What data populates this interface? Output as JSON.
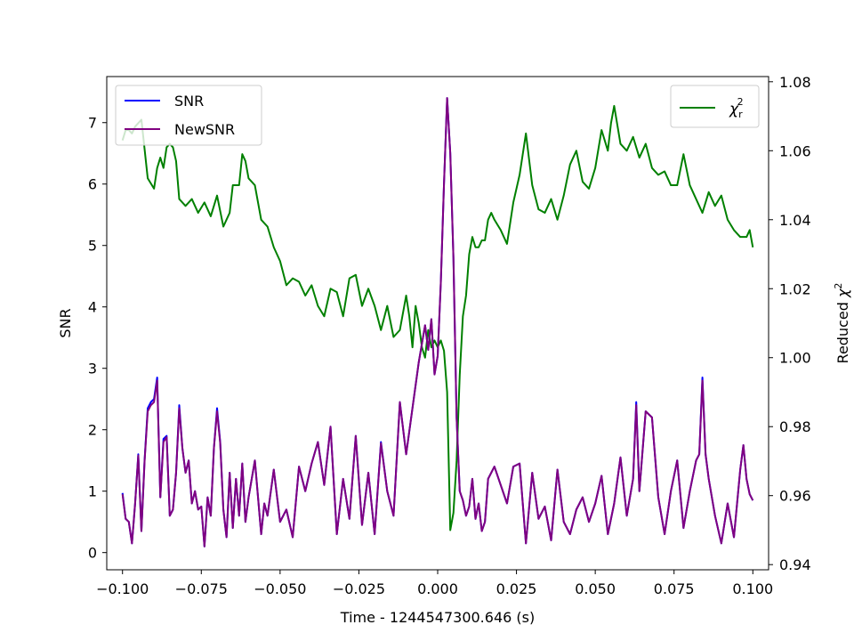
{
  "chart_data": {
    "type": "line",
    "xlabel": "Time - 1244547300.646 (s)",
    "ylabel_left": "SNR",
    "ylabel_right_prefix": "Reduced ",
    "ylabel_right_symbol": "χ",
    "ylabel_right_sup": "2",
    "xlim": [
      -0.105,
      0.105
    ],
    "ylim_left": [
      -0.28,
      7.75
    ],
    "ylim_right": [
      0.9385,
      1.0815
    ],
    "x_ticks": [
      -0.1,
      -0.075,
      -0.05,
      -0.025,
      0.0,
      0.025,
      0.05,
      0.075,
      0.1
    ],
    "x_tick_labels": [
      "−0.100",
      "−0.075",
      "−0.050",
      "−0.025",
      "0.000",
      "0.025",
      "0.050",
      "0.075",
      "0.100"
    ],
    "y_left_ticks": [
      0,
      1,
      2,
      3,
      4,
      5,
      6,
      7
    ],
    "y_left_tick_labels": [
      "0",
      "1",
      "2",
      "3",
      "4",
      "5",
      "6",
      "7"
    ],
    "y_right_ticks": [
      0.94,
      0.96,
      0.98,
      1.0,
      1.02,
      1.04,
      1.06,
      1.08
    ],
    "y_right_tick_labels": [
      "0.94",
      "0.96",
      "0.98",
      "1.00",
      "1.02",
      "1.04",
      "1.06",
      "1.08"
    ],
    "grid": false,
    "legend_left": {
      "placement": "upper-left",
      "entries": [
        {
          "label": "SNR",
          "color": "#0000ff"
        },
        {
          "label": "NewSNR",
          "color": "#800080"
        }
      ]
    },
    "legend_right": {
      "placement": "upper-right",
      "symbol": "χ",
      "subscript": "r",
      "superscript": "2",
      "color": "#008000"
    },
    "series": [
      {
        "name": "SNR",
        "axis": "left",
        "color": "#0000ff",
        "x": [
          -0.1,
          -0.099,
          -0.098,
          -0.097,
          -0.096,
          -0.095,
          -0.094,
          -0.093,
          -0.092,
          -0.091,
          -0.09,
          -0.089,
          -0.088,
          -0.087,
          -0.086,
          -0.085,
          -0.084,
          -0.083,
          -0.082,
          -0.081,
          -0.08,
          -0.079,
          -0.078,
          -0.077,
          -0.076,
          -0.075,
          -0.074,
          -0.073,
          -0.072,
          -0.071,
          -0.07,
          -0.069,
          -0.068,
          -0.067,
          -0.066,
          -0.065,
          -0.064,
          -0.063,
          -0.062,
          -0.061,
          -0.06,
          -0.058,
          -0.056,
          -0.055,
          -0.054,
          -0.052,
          -0.05,
          -0.048,
          -0.046,
          -0.044,
          -0.042,
          -0.04,
          -0.038,
          -0.036,
          -0.034,
          -0.032,
          -0.03,
          -0.028,
          -0.026,
          -0.024,
          -0.022,
          -0.02,
          -0.018,
          -0.016,
          -0.014,
          -0.012,
          -0.01,
          -0.008,
          -0.006,
          -0.004,
          -0.003,
          -0.002,
          -0.001,
          0.0,
          0.001,
          0.002,
          0.003,
          0.004,
          0.005,
          0.006,
          0.007,
          0.008,
          0.009,
          0.01,
          0.011,
          0.012,
          0.013,
          0.014,
          0.015,
          0.016,
          0.018,
          0.02,
          0.022,
          0.024,
          0.026,
          0.028,
          0.03,
          0.032,
          0.034,
          0.036,
          0.038,
          0.04,
          0.042,
          0.044,
          0.046,
          0.048,
          0.05,
          0.052,
          0.054,
          0.056,
          0.058,
          0.06,
          0.062,
          0.063,
          0.064,
          0.066,
          0.068,
          0.07,
          0.072,
          0.074,
          0.076,
          0.078,
          0.08,
          0.082,
          0.083,
          0.084,
          0.085,
          0.086,
          0.088,
          0.09,
          0.092,
          0.094,
          0.096,
          0.097,
          0.098,
          0.099,
          0.1
        ],
        "y": [
          0.97,
          0.55,
          0.5,
          0.15,
          0.8,
          1.6,
          0.35,
          1.5,
          2.35,
          2.45,
          2.5,
          2.85,
          0.9,
          1.85,
          1.9,
          0.6,
          0.7,
          1.3,
          2.4,
          1.7,
          1.3,
          1.5,
          0.8,
          1.0,
          0.7,
          0.75,
          0.1,
          0.9,
          0.6,
          1.7,
          2.35,
          1.8,
          0.7,
          0.25,
          1.3,
          0.4,
          1.2,
          0.6,
          1.45,
          0.5,
          0.9,
          1.5,
          0.3,
          0.8,
          0.6,
          1.35,
          0.5,
          0.7,
          0.25,
          1.4,
          1.0,
          1.45,
          1.8,
          1.1,
          2.05,
          0.3,
          1.2,
          0.55,
          1.9,
          0.45,
          1.3,
          0.3,
          1.8,
          1.0,
          0.6,
          2.45,
          1.6,
          2.35,
          3.1,
          3.7,
          3.3,
          3.8,
          2.9,
          3.2,
          4.4,
          6.0,
          7.4,
          6.5,
          4.8,
          2.2,
          1.0,
          0.85,
          0.6,
          0.75,
          1.2,
          0.55,
          0.8,
          0.35,
          0.5,
          1.2,
          1.4,
          1.1,
          0.8,
          1.4,
          1.45,
          0.15,
          1.3,
          0.55,
          0.75,
          0.2,
          1.35,
          0.5,
          0.3,
          0.7,
          0.9,
          0.5,
          0.8,
          1.25,
          0.3,
          0.8,
          1.55,
          0.6,
          1.2,
          2.45,
          1.0,
          2.3,
          2.2,
          0.9,
          0.3,
          1.0,
          1.5,
          0.4,
          1.0,
          1.5,
          1.6,
          2.85,
          1.6,
          1.2,
          0.6,
          0.15,
          0.8,
          0.25,
          1.35,
          1.75,
          1.2,
          0.95,
          0.85
        ]
      },
      {
        "name": "NewSNR",
        "axis": "left",
        "color": "#800080",
        "x": [
          -0.1,
          -0.099,
          -0.098,
          -0.097,
          -0.096,
          -0.095,
          -0.094,
          -0.093,
          -0.092,
          -0.091,
          -0.09,
          -0.089,
          -0.088,
          -0.087,
          -0.086,
          -0.085,
          -0.084,
          -0.083,
          -0.082,
          -0.081,
          -0.08,
          -0.079,
          -0.078,
          -0.077,
          -0.076,
          -0.075,
          -0.074,
          -0.073,
          -0.072,
          -0.071,
          -0.07,
          -0.069,
          -0.068,
          -0.067,
          -0.066,
          -0.065,
          -0.064,
          -0.063,
          -0.062,
          -0.061,
          -0.06,
          -0.058,
          -0.056,
          -0.055,
          -0.054,
          -0.052,
          -0.05,
          -0.048,
          -0.046,
          -0.044,
          -0.042,
          -0.04,
          -0.038,
          -0.036,
          -0.034,
          -0.032,
          -0.03,
          -0.028,
          -0.026,
          -0.024,
          -0.022,
          -0.02,
          -0.018,
          -0.016,
          -0.014,
          -0.012,
          -0.01,
          -0.008,
          -0.006,
          -0.004,
          -0.003,
          -0.002,
          -0.001,
          0.0,
          0.001,
          0.002,
          0.003,
          0.004,
          0.005,
          0.006,
          0.007,
          0.008,
          0.009,
          0.01,
          0.011,
          0.012,
          0.013,
          0.014,
          0.015,
          0.016,
          0.018,
          0.02,
          0.022,
          0.024,
          0.026,
          0.028,
          0.03,
          0.032,
          0.034,
          0.036,
          0.038,
          0.04,
          0.042,
          0.044,
          0.046,
          0.048,
          0.05,
          0.052,
          0.054,
          0.056,
          0.058,
          0.06,
          0.062,
          0.063,
          0.064,
          0.066,
          0.068,
          0.07,
          0.072,
          0.074,
          0.076,
          0.078,
          0.08,
          0.082,
          0.083,
          0.084,
          0.085,
          0.086,
          0.088,
          0.09,
          0.092,
          0.094,
          0.096,
          0.097,
          0.098,
          0.099,
          0.1
        ],
        "y": [
          0.95,
          0.55,
          0.5,
          0.15,
          0.8,
          1.58,
          0.35,
          1.48,
          2.3,
          2.4,
          2.45,
          2.8,
          0.9,
          1.8,
          1.88,
          0.6,
          0.7,
          1.3,
          2.35,
          1.7,
          1.3,
          1.5,
          0.8,
          1.0,
          0.7,
          0.75,
          0.1,
          0.9,
          0.6,
          1.7,
          2.3,
          1.78,
          0.7,
          0.25,
          1.3,
          0.4,
          1.2,
          0.6,
          1.45,
          0.5,
          0.9,
          1.5,
          0.3,
          0.8,
          0.6,
          1.35,
          0.5,
          0.7,
          0.25,
          1.4,
          1.0,
          1.45,
          1.8,
          1.1,
          2.05,
          0.3,
          1.2,
          0.55,
          1.9,
          0.45,
          1.3,
          0.3,
          1.78,
          1.0,
          0.6,
          2.45,
          1.6,
          2.35,
          3.1,
          3.7,
          3.3,
          3.8,
          2.9,
          3.2,
          4.4,
          6.0,
          7.4,
          6.5,
          4.8,
          2.2,
          1.0,
          0.85,
          0.6,
          0.75,
          1.2,
          0.55,
          0.8,
          0.35,
          0.5,
          1.2,
          1.4,
          1.1,
          0.8,
          1.4,
          1.45,
          0.15,
          1.3,
          0.55,
          0.75,
          0.2,
          1.35,
          0.5,
          0.3,
          0.7,
          0.9,
          0.5,
          0.8,
          1.25,
          0.3,
          0.8,
          1.55,
          0.6,
          1.2,
          2.4,
          1.0,
          2.3,
          2.2,
          0.9,
          0.3,
          1.0,
          1.5,
          0.4,
          1.0,
          1.5,
          1.6,
          2.8,
          1.6,
          1.2,
          0.6,
          0.15,
          0.8,
          0.25,
          1.35,
          1.75,
          1.2,
          0.95,
          0.85
        ]
      },
      {
        "name": "χ_r^2",
        "axis": "right",
        "color": "#008000",
        "x": [
          -0.1,
          -0.099,
          -0.098,
          -0.097,
          -0.096,
          -0.095,
          -0.094,
          -0.092,
          -0.09,
          -0.089,
          -0.088,
          -0.087,
          -0.086,
          -0.085,
          -0.084,
          -0.083,
          -0.082,
          -0.08,
          -0.078,
          -0.076,
          -0.074,
          -0.072,
          -0.07,
          -0.068,
          -0.066,
          -0.065,
          -0.064,
          -0.063,
          -0.062,
          -0.061,
          -0.06,
          -0.059,
          -0.058,
          -0.056,
          -0.054,
          -0.052,
          -0.05,
          -0.048,
          -0.046,
          -0.044,
          -0.042,
          -0.04,
          -0.038,
          -0.036,
          -0.034,
          -0.032,
          -0.03,
          -0.028,
          -0.026,
          -0.024,
          -0.022,
          -0.02,
          -0.018,
          -0.016,
          -0.014,
          -0.012,
          -0.01,
          -0.009,
          -0.008,
          -0.007,
          -0.006,
          -0.005,
          -0.004,
          -0.003,
          -0.002,
          -0.001,
          0.0,
          0.001,
          0.002,
          0.003,
          0.004,
          0.005,
          0.006,
          0.007,
          0.008,
          0.009,
          0.01,
          0.011,
          0.012,
          0.013,
          0.014,
          0.015,
          0.016,
          0.017,
          0.018,
          0.02,
          0.022,
          0.024,
          0.026,
          0.028,
          0.03,
          0.032,
          0.034,
          0.036,
          0.038,
          0.04,
          0.042,
          0.044,
          0.046,
          0.048,
          0.05,
          0.052,
          0.054,
          0.055,
          0.056,
          0.058,
          0.06,
          0.062,
          0.064,
          0.066,
          0.068,
          0.07,
          0.072,
          0.074,
          0.076,
          0.078,
          0.08,
          0.082,
          0.084,
          0.086,
          0.088,
          0.09,
          0.092,
          0.094,
          0.096,
          0.098,
          0.099,
          0.1
        ],
        "y": [
          1.063,
          1.066,
          1.066,
          1.065,
          1.067,
          1.068,
          1.069,
          1.052,
          1.049,
          1.055,
          1.058,
          1.055,
          1.061,
          1.062,
          1.061,
          1.057,
          1.046,
          1.044,
          1.046,
          1.042,
          1.045,
          1.041,
          1.047,
          1.038,
          1.042,
          1.05,
          1.05,
          1.05,
          1.059,
          1.057,
          1.052,
          1.051,
          1.05,
          1.04,
          1.038,
          1.032,
          1.028,
          1.021,
          1.023,
          1.022,
          1.018,
          1.021,
          1.015,
          1.012,
          1.02,
          1.019,
          1.012,
          1.023,
          1.024,
          1.015,
          1.02,
          1.015,
          1.008,
          1.015,
          1.006,
          1.008,
          1.018,
          1.012,
          1.003,
          1.015,
          1.01,
          1.003,
          1.0,
          1.008,
          1.003,
          1.005,
          1.003,
          1.005,
          1.002,
          0.99,
          0.95,
          0.955,
          0.97,
          0.995,
          1.012,
          1.018,
          1.03,
          1.035,
          1.032,
          1.032,
          1.034,
          1.034,
          1.04,
          1.042,
          1.04,
          1.037,
          1.033,
          1.045,
          1.053,
          1.065,
          1.05,
          1.043,
          1.042,
          1.046,
          1.04,
          1.047,
          1.056,
          1.06,
          1.051,
          1.049,
          1.055,
          1.066,
          1.06,
          1.068,
          1.073,
          1.062,
          1.06,
          1.064,
          1.058,
          1.062,
          1.055,
          1.053,
          1.054,
          1.05,
          1.05,
          1.059,
          1.05,
          1.046,
          1.042,
          1.048,
          1.044,
          1.047,
          1.04,
          1.037,
          1.035,
          1.035,
          1.037,
          1.032
        ]
      }
    ]
  }
}
